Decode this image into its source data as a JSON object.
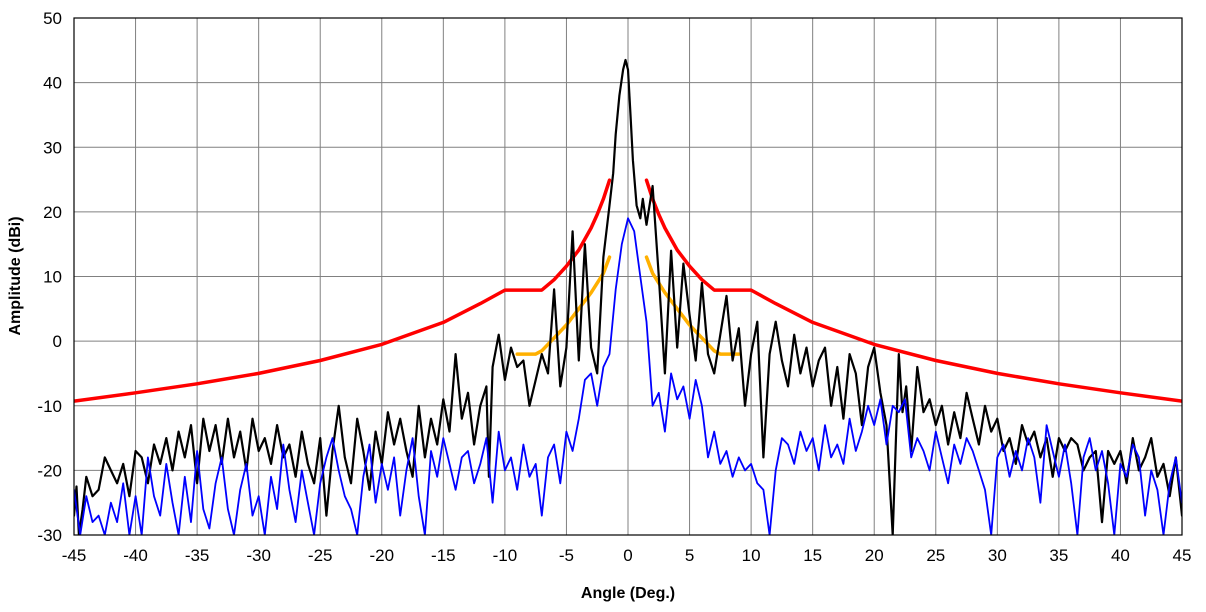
{
  "chart_data": {
    "type": "line",
    "title": "",
    "xlabel": "Angle (Deg.)",
    "ylabel": "Amplitude (dBi)",
    "xlim": [
      -45,
      45
    ],
    "ylim": [
      -30,
      50
    ],
    "xticks": [
      "-45",
      "-40",
      "-35",
      "-30",
      "-25",
      "-20",
      "-15",
      "-10",
      "-5",
      "0",
      "5",
      "10",
      "15",
      "20",
      "25",
      "30",
      "35",
      "40",
      "45"
    ],
    "yticks": [
      "50",
      "40",
      "30",
      "20",
      "10",
      "0",
      "-10",
      "-20",
      "-30"
    ],
    "grid": true,
    "legend": "none",
    "series": [
      {
        "color": "#ff0000",
        "width": 3.5,
        "x": [
          -45,
          -40,
          -35,
          -30,
          -25,
          -20,
          -15,
          -12,
          -10,
          -9,
          -7,
          -6,
          -5,
          -4,
          -3,
          -2.5,
          -2,
          -1.5,
          null,
          1.5,
          2,
          2.5,
          3,
          4,
          5,
          6,
          7,
          9,
          10,
          12,
          15,
          20,
          25,
          30,
          35,
          40,
          45
        ],
        "y": [
          -9.3,
          -8,
          -6.6,
          -5,
          -3,
          -0.5,
          2.9,
          5.8,
          7.9,
          7.9,
          7.9,
          9.5,
          11.6,
          14.1,
          17.5,
          19.6,
          22,
          24.9,
          null,
          24.9,
          22,
          19.6,
          17.5,
          14.1,
          11.6,
          9.5,
          7.9,
          7.9,
          7.9,
          5.8,
          2.9,
          -0.5,
          -3,
          -5,
          -6.6,
          -8,
          -9.3
        ]
      },
      {
        "color": "#ffb000",
        "width": 3.5,
        "x": [
          -9,
          -7.5,
          -7,
          -6,
          -5,
          -4,
          -3,
          -2,
          -1.5,
          null,
          1.5,
          2,
          3,
          4,
          5,
          6,
          7,
          7.5,
          9
        ],
        "y": [
          -2,
          -2,
          -1.5,
          0.5,
          2.5,
          5,
          7.5,
          10.5,
          13,
          null,
          13,
          10.5,
          7.5,
          5,
          2.5,
          0.5,
          -1.5,
          -2,
          -2
        ]
      },
      {
        "color": "#000000",
        "width": 2.2,
        "x": [
          -45,
          -44.8,
          -44.6,
          -44.3,
          -44,
          -43.5,
          -43,
          -42.5,
          -42,
          -41.5,
          -41,
          -40.5,
          -40,
          -39.5,
          -39,
          -38.5,
          -38,
          -37.5,
          -37,
          -36.5,
          -36,
          -35.5,
          -35,
          -34.5,
          -34,
          -33.5,
          -33,
          -32.5,
          -32,
          -31.5,
          -31,
          -30.5,
          -30,
          -29.5,
          -29,
          -28.5,
          -28,
          -27.5,
          -27,
          -26.5,
          -26,
          -25.5,
          -25,
          -24.5,
          -24,
          -23.5,
          -23,
          -22.5,
          -22,
          -21.5,
          -21,
          -20.5,
          -20,
          -19.5,
          -19,
          -18.5,
          -18,
          -17.5,
          -17,
          -16.5,
          -16,
          -15.5,
          -15,
          -14.5,
          -14,
          -13.5,
          -13,
          -12.5,
          -12,
          -11.5,
          -11.3,
          -11,
          -10.5,
          -10,
          -9.5,
          -9,
          -8.5,
          -8,
          -7.5,
          -7,
          -6.5,
          -6,
          -5.5,
          -5,
          -4.5,
          -4,
          -3.5,
          -3,
          -2.5,
          -2,
          -1.5,
          -1.2,
          -1,
          -0.7,
          -0.4,
          -0.2,
          0,
          0.2,
          0.4,
          0.7,
          1,
          1.2,
          1.5,
          2,
          2.5,
          3,
          3.5,
          4,
          4.5,
          5,
          5.5,
          6,
          6.5,
          7,
          7.5,
          8,
          8.5,
          9,
          9.5,
          10,
          10.5,
          11,
          11.5,
          12,
          12.5,
          13,
          13.5,
          14,
          14.5,
          15,
          15.5,
          16,
          16.5,
          17,
          17.5,
          18,
          18.5,
          19,
          19.5,
          20,
          20.5,
          21,
          21.5,
          22,
          22.3,
          22.6,
          23,
          23.5,
          24,
          24.5,
          25,
          25.5,
          26,
          26.5,
          27,
          27.5,
          28,
          28.5,
          29,
          29.5,
          30,
          30.5,
          31,
          31.5,
          32,
          32.5,
          33,
          33.5,
          34,
          34.5,
          35,
          35.5,
          36,
          36.5,
          37,
          37.5,
          38,
          38.5,
          39,
          39.5,
          40,
          40.5,
          41,
          41.5,
          42,
          42.5,
          43,
          43.5,
          44,
          44.5,
          45
        ],
        "y": [
          -27,
          -22.5,
          -30,
          -26,
          -21,
          -24,
          -23,
          -18,
          -20,
          -22,
          -19,
          -24,
          -17,
          -18,
          -22,
          -16,
          -19,
          -15,
          -20,
          -14,
          -18,
          -13,
          -22,
          -12,
          -17,
          -13,
          -19,
          -12,
          -18,
          -14,
          -20,
          -12,
          -17,
          -15,
          -19,
          -13,
          -18,
          -16,
          -21,
          -14,
          -19,
          -22,
          -15,
          -27,
          -17,
          -10,
          -18,
          -22,
          -12,
          -17,
          -23,
          -14,
          -19,
          -11,
          -16,
          -12,
          -17,
          -21,
          -10,
          -18,
          -12,
          -16,
          -9,
          -14,
          -2,
          -12,
          -8,
          -16,
          -10,
          -7,
          -21,
          -4,
          1,
          -6,
          -1,
          -4,
          -3,
          -10,
          -6,
          -2,
          -5,
          8,
          -7,
          -1,
          17,
          -3,
          15,
          -1,
          -5,
          13,
          21,
          26,
          32,
          38,
          42,
          43.5,
          42,
          35,
          28,
          21,
          19,
          22,
          18,
          24,
          10,
          -5,
          14,
          -1,
          12,
          4,
          -3,
          9,
          -2,
          -5,
          1,
          7,
          -3,
          2,
          -10,
          -2,
          3,
          -18,
          -2,
          3,
          -3,
          -7,
          1,
          -5,
          -1,
          -7,
          -3,
          -1,
          -10,
          -4,
          -12,
          -2,
          -5,
          -13,
          -4,
          -1,
          -8,
          -13,
          -30,
          -2,
          -11,
          -7,
          -17,
          -4,
          -11,
          -9,
          -13,
          -10,
          -16,
          -11,
          -15,
          -8,
          -12,
          -16,
          -10,
          -14,
          -12,
          -17,
          -15,
          -19,
          -13,
          -16,
          -14,
          -18,
          -15,
          -21,
          -15,
          -17,
          -15,
          -16,
          -20,
          -18,
          -17,
          -28,
          -17,
          -19,
          -17,
          -22,
          -15,
          -20,
          -18,
          -15,
          -21,
          -19,
          -24,
          -18,
          -27
        ]
      },
      {
        "color": "#0000ff",
        "width": 1.8,
        "x": [
          -45,
          -44.5,
          -44,
          -43.5,
          -43,
          -42.5,
          -42,
          -41.5,
          -41,
          -40.5,
          -40,
          -39.5,
          -39,
          -38.5,
          -38,
          -37.5,
          -37,
          -36.5,
          -36,
          -35.5,
          -35,
          -34.5,
          -34,
          -33.5,
          -33,
          -32.5,
          -32,
          -31.5,
          -31,
          -30.5,
          -30,
          -29.5,
          -29,
          -28.5,
          -28,
          -27.5,
          -27,
          -26.5,
          -26,
          -25.5,
          -25,
          -24.5,
          -24,
          -23.5,
          -23,
          -22.5,
          -22,
          -21.5,
          -21,
          -20.5,
          -20,
          -19.5,
          -19,
          -18.5,
          -18,
          -17.5,
          -17,
          -16.5,
          -16,
          -15.5,
          -15,
          -14.5,
          -14,
          -13.5,
          -13,
          -12.5,
          -12,
          -11.5,
          -11,
          -10.5,
          -10,
          -9.5,
          -9,
          -8.5,
          -8,
          -7.5,
          -7,
          -6.5,
          -6,
          -5.5,
          -5,
          -4.5,
          -4,
          -3.5,
          -3,
          -2.5,
          -2,
          -1.5,
          -1,
          -0.5,
          0,
          0.5,
          1,
          1.5,
          2,
          2.5,
          3,
          3.5,
          4,
          4.5,
          5,
          5.5,
          6,
          6.5,
          7,
          7.5,
          8,
          8.5,
          9,
          9.5,
          10,
          10.5,
          11,
          11.5,
          12,
          12.5,
          13,
          13.5,
          14,
          14.5,
          15,
          15.5,
          16,
          16.5,
          17,
          17.5,
          18,
          18.5,
          19,
          19.5,
          20,
          20.5,
          21,
          21.5,
          22,
          22.5,
          23,
          23.5,
          24,
          24.5,
          25,
          25.5,
          26,
          26.5,
          27,
          27.5,
          28,
          28.5,
          29,
          29.5,
          30,
          30.5,
          31,
          31.5,
          32,
          32.5,
          33,
          33.5,
          34,
          34.5,
          35,
          35.5,
          36,
          36.5,
          37,
          37.5,
          38,
          38.5,
          39,
          39.5,
          40,
          40.5,
          41,
          41.5,
          42,
          42.5,
          43,
          43.5,
          44,
          44.5,
          45
        ],
        "y": [
          -23,
          -30,
          -24,
          -28,
          -27,
          -30,
          -25,
          -28,
          -22,
          -30,
          -24,
          -30,
          -18,
          -24,
          -27,
          -19,
          -25,
          -30,
          -21,
          -28,
          -17,
          -26,
          -29,
          -22,
          -18,
          -26,
          -30,
          -23,
          -19,
          -27,
          -24,
          -30,
          -21,
          -26,
          -16,
          -23,
          -28,
          -20,
          -25,
          -30,
          -22,
          -18,
          -15,
          -20,
          -24,
          -26,
          -30,
          -21,
          -16,
          -25,
          -19,
          -23,
          -18,
          -27,
          -20,
          -15,
          -24,
          -30,
          -17,
          -21,
          -15,
          -19,
          -23,
          -18,
          -17,
          -22,
          -19,
          -15,
          -25,
          -14,
          -20,
          -18,
          -23,
          -16,
          -21,
          -19,
          -27,
          -18,
          -16,
          -22,
          -14,
          -17,
          -12,
          -6,
          -5,
          -10,
          -4,
          -2,
          8,
          15,
          19,
          17,
          10,
          3,
          -10,
          -8,
          -14,
          -5,
          -9,
          -7,
          -12,
          -6,
          -10,
          -18,
          -14,
          -19,
          -17,
          -21,
          -18,
          -20,
          -19,
          -22,
          -23,
          -30,
          -20,
          -15,
          -16,
          -19,
          -14,
          -17,
          -15,
          -20,
          -13,
          -18,
          -16,
          -19,
          -12,
          -17,
          -14,
          -10,
          -13,
          -9,
          -16,
          -10,
          -11,
          -9,
          -18,
          -15,
          -17,
          -20,
          -14,
          -18,
          -22,
          -16,
          -19,
          -15,
          -17,
          -20,
          -23,
          -30,
          -18,
          -16,
          -21,
          -17,
          -20,
          -15,
          -18,
          -25,
          -13,
          -17,
          -21,
          -16,
          -22,
          -30,
          -18,
          -15,
          -20,
          -17,
          -22,
          -30,
          -19,
          -21,
          -16,
          -18,
          -27,
          -20,
          -23,
          -30,
          -22,
          -18,
          -25
        ]
      }
    ]
  }
}
